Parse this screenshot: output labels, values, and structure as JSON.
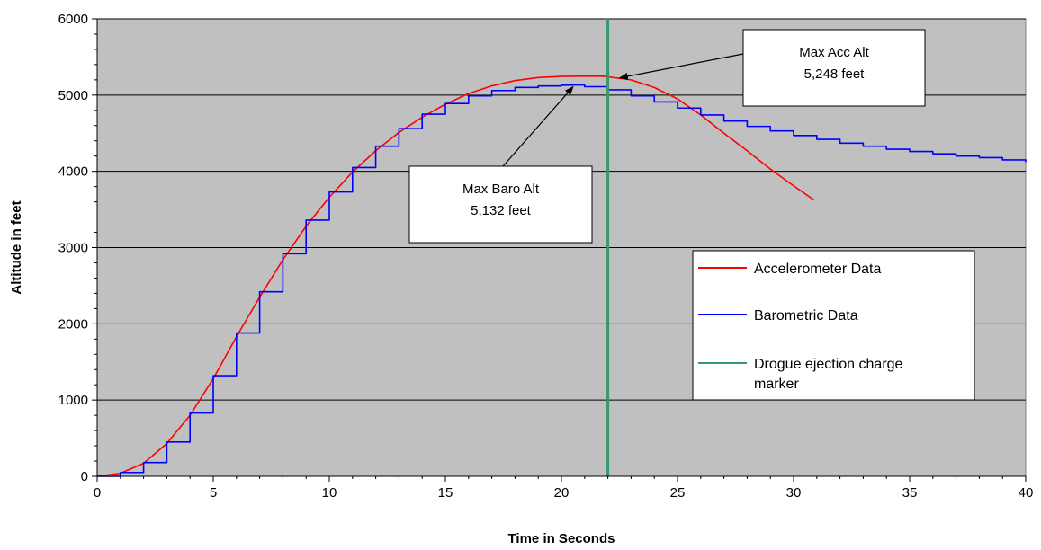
{
  "chart_data": {
    "type": "line",
    "title": "",
    "xlabel": "Time in Seconds",
    "ylabel": "Altitude in feet",
    "xlim": [
      0,
      40
    ],
    "ylim": [
      0,
      6000
    ],
    "x_ticks": [
      0,
      5,
      10,
      15,
      20,
      25,
      30,
      35,
      40
    ],
    "y_ticks": [
      0,
      1000,
      2000,
      3000,
      4000,
      5000,
      6000
    ],
    "grid": "horizontal",
    "plot_background": "#c0c0c0",
    "legend_position": "right",
    "series": [
      {
        "name": "Accelerometer Data",
        "color": "#ff0000",
        "x": [
          0,
          1,
          2,
          3,
          4,
          5,
          6,
          7,
          8,
          9,
          10,
          11,
          12,
          13,
          14,
          15,
          16,
          17,
          18,
          19,
          20,
          21,
          21.8,
          23,
          24,
          25,
          26,
          27,
          28,
          29,
          30,
          30.9
        ],
        "y": [
          0,
          40,
          170,
          430,
          800,
          1280,
          1830,
          2350,
          2840,
          3280,
          3660,
          3990,
          4270,
          4510,
          4710,
          4880,
          5020,
          5120,
          5190,
          5230,
          5245,
          5248,
          5248,
          5200,
          5100,
          4950,
          4740,
          4500,
          4270,
          4030,
          3810,
          3620
        ]
      },
      {
        "name": "Barometric Data",
        "color": "#0000ff",
        "x": [
          0,
          1,
          2,
          3,
          4,
          5,
          6,
          7,
          8,
          9,
          10,
          11,
          12,
          13,
          14,
          15,
          16,
          17,
          18,
          19,
          20,
          20.5,
          21,
          22,
          23,
          24,
          25,
          26,
          27,
          28,
          29,
          30,
          31,
          32,
          33,
          34,
          35,
          36,
          37,
          38,
          39,
          40
        ],
        "y": [
          0,
          50,
          180,
          450,
          830,
          1320,
          1880,
          2420,
          2920,
          3360,
          3730,
          4050,
          4330,
          4560,
          4750,
          4890,
          4990,
          5060,
          5100,
          5120,
          5130,
          5132,
          5110,
          5070,
          4990,
          4910,
          4830,
          4740,
          4660,
          4590,
          4530,
          4470,
          4420,
          4370,
          4330,
          4290,
          4260,
          4230,
          4200,
          4180,
          4150,
          4120
        ]
      },
      {
        "name": "Drogue ejection charge marker",
        "color": "#339966",
        "x": [
          22,
          22
        ],
        "y": [
          0,
          6000
        ]
      }
    ],
    "annotations": [
      {
        "lines": [
          "Max Acc Alt",
          "5,248 feet"
        ],
        "point": [
          22.2,
          5250
        ]
      },
      {
        "lines": [
          "Max Baro Alt",
          "5,132 feet"
        ],
        "point": [
          20.5,
          5132
        ]
      }
    ],
    "legend_entries": [
      "Accelerometer Data",
      "Barometric Data",
      "Drogue ejection charge",
      "marker"
    ]
  }
}
